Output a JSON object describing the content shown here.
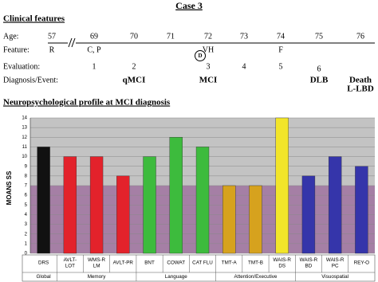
{
  "header": {
    "title": "Case 3"
  },
  "clinical": {
    "heading": "Clinical features",
    "row_labels": [
      "Age:",
      "Feature:",
      "Evaluation:",
      "Diagnosis/Event:"
    ],
    "columns": [
      {
        "age": "57",
        "feature": "R"
      },
      {
        "age": "69",
        "feature": "C, P",
        "evaluation": "1"
      },
      {
        "age": "70",
        "evaluation": "2",
        "diagnosis": [
          "qMCI"
        ]
      },
      {
        "age": "71"
      },
      {
        "age": "72",
        "feature": "VH",
        "evaluation": "3",
        "annotation": "D",
        "diagnosis": [
          "MCI"
        ]
      },
      {
        "age": "73",
        "evaluation": "4"
      },
      {
        "age": "74",
        "feature": "F",
        "evaluation": "5"
      },
      {
        "age": "75",
        "evaluation": "6",
        "diagnosis": [
          "DLB"
        ]
      },
      {
        "age": "76",
        "diagnosis": [
          "Death",
          "L-LBD"
        ]
      }
    ]
  },
  "chart_data": {
    "type": "bar",
    "title": "Neuropsychological profile at MCI diagnosis",
    "y_label": "MOANS SS",
    "ylim": [
      0,
      14
    ],
    "yticks": [
      0,
      1,
      2,
      3,
      4,
      5,
      6,
      7,
      8,
      9,
      10,
      11,
      12,
      13,
      14
    ],
    "grid": true,
    "plot_bg": "#c3c3c3",
    "shade": {
      "from": 0,
      "to": 7,
      "color": "#a57fa5"
    },
    "groups": [
      {
        "name": "Global",
        "categories": [
          [
            "DRS"
          ]
        ],
        "values": [
          11
        ],
        "colors": [
          "#111111"
        ]
      },
      {
        "name": "Memory",
        "categories": [
          [
            "AVLT-",
            "LOT"
          ],
          [
            "WMS-R",
            "LM"
          ],
          [
            "AVLT-PR"
          ]
        ],
        "values": [
          10,
          10,
          8
        ],
        "colors": [
          "#e3222b",
          "#e3222b",
          "#e3222b"
        ]
      },
      {
        "name": "Language",
        "categories": [
          [
            "BNT"
          ],
          [
            "COWAT"
          ],
          [
            "CAT FLU"
          ]
        ],
        "values": [
          10,
          12,
          11
        ],
        "colors": [
          "#3dbb3d",
          "#3dbb3d",
          "#3dbb3d"
        ]
      },
      {
        "name": "Attention/Executive",
        "categories": [
          [
            "TMT-A"
          ],
          [
            "TMT-B"
          ],
          [
            "WAIS-R",
            "DS"
          ]
        ],
        "values": [
          7,
          7,
          14
        ],
        "colors": [
          "#d6a21e",
          "#d6a21e",
          "#f2e52a"
        ]
      },
      {
        "name": "Visuospatial",
        "categories": [
          [
            "WAIS-R",
            "BD"
          ],
          [
            "WAIS-R",
            "PC"
          ],
          [
            "REY-O"
          ]
        ],
        "values": [
          8,
          10,
          9
        ],
        "colors": [
          "#3535aa",
          "#3535aa",
          "#3535aa"
        ]
      }
    ]
  }
}
